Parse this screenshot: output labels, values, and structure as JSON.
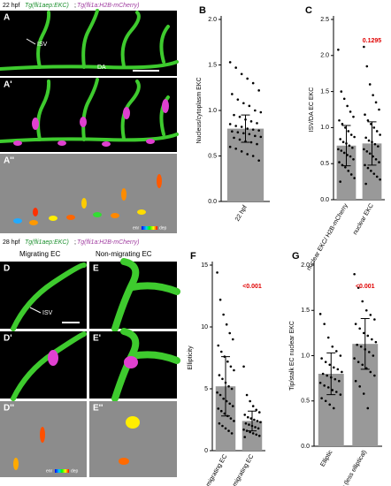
{
  "panel_texts": {
    "top_stage": "22 hpf",
    "top_line_a": "Tg(fli1aep:EKC)",
    "top_sep": ";",
    "top_line_b": "Tg(fli1a:H2B-mCherry)",
    "A": "A",
    "A1": "A'",
    "A2": "A''",
    "isv": "ISV",
    "da": "DA",
    "enr": "enr",
    "dep": "dep",
    "bottom_stage": "28 hpf",
    "bottom_line_a": "Tg(fli1aep:EKC)",
    "bottom_sep": ";",
    "bottom_line_b": "Tg(fli1a:H2B-mCherry)",
    "migrating": "Migrating EC",
    "non_migrating": "Non-migrating EC",
    "D": "D",
    "D1": "D'",
    "D2": "D''",
    "E": "E",
    "E1": "E'",
    "E2": "E''",
    "isv2": "ISV",
    "enr2": "enr",
    "dep2": "dep"
  },
  "chart_data": [
    {
      "type": "bar",
      "panel": "B",
      "y_label": "Nucleus/cytoplasm EKC",
      "color": "#999999",
      "categories": [
        "22 hpf"
      ],
      "values": [
        0.8
      ],
      "errors": [
        0.15
      ],
      "points": [
        [
          1.53,
          1.47,
          1.4,
          1.35,
          1.3,
          1.22,
          1.18,
          1.12,
          1.08,
          1.05,
          1.0,
          0.98,
          0.95,
          0.93,
          0.9,
          0.88,
          0.86,
          0.85,
          0.83,
          0.82,
          0.8,
          0.79,
          0.78,
          0.77,
          0.76,
          0.75,
          0.74,
          0.72,
          0.71,
          0.7,
          0.68,
          0.66,
          0.65,
          0.63,
          0.6,
          0.58,
          0.55,
          0.52,
          0.5,
          0.45
        ]
      ],
      "ylim": [
        0,
        2.0
      ],
      "yticks": [
        {
          "value": 0,
          "label": "0.0"
        },
        {
          "value": 0.5,
          "label": "0.5"
        },
        {
          "value": 1,
          "label": "1.0"
        },
        {
          "value": 1.5,
          "label": "1.5"
        },
        {
          "value": 2,
          "label": "2.0"
        }
      ]
    },
    {
      "type": "bar",
      "panel": "C",
      "y_label": "ISV/DA EC EKC",
      "color": "#999999",
      "annotation": "0.1295",
      "categories": [
        "nuclear EKC/ H2B-mCherry",
        "nuclear EKC"
      ],
      "values": [
        0.75,
        0.78
      ],
      "errors": [
        0.28,
        0.3
      ],
      "points": [
        [
          2.08,
          1.5,
          1.4,
          1.3,
          1.22,
          1.15,
          1.1,
          1.05,
          1.0,
          0.95,
          0.9,
          0.87,
          0.84,
          0.8,
          0.78,
          0.75,
          0.72,
          0.7,
          0.68,
          0.65,
          0.62,
          0.6,
          0.56,
          0.52,
          0.48,
          0.45,
          0.4,
          0.35,
          0.3,
          0.25
        ],
        [
          2.12,
          1.85,
          1.6,
          1.45,
          1.35,
          1.25,
          1.18,
          1.1,
          1.05,
          1.0,
          0.95,
          0.9,
          0.86,
          0.82,
          0.8,
          0.77,
          0.74,
          0.7,
          0.67,
          0.64,
          0.6,
          0.56,
          0.52,
          0.48,
          0.44,
          0.4,
          0.36,
          0.32,
          0.28,
          0.22
        ]
      ],
      "ylim": [
        0,
        2.5
      ],
      "yticks": [
        {
          "value": 0,
          "label": "0.0"
        },
        {
          "value": 0.5,
          "label": "0.5"
        },
        {
          "value": 1,
          "label": "1.0"
        },
        {
          "value": 1.5,
          "label": "1.5"
        },
        {
          "value": 2,
          "label": "2.0"
        },
        {
          "value": 2.5,
          "label": "2.5"
        }
      ]
    },
    {
      "type": "bar",
      "panel": "F",
      "y_label": "Ellipticity",
      "color": "#999999",
      "annotation": "<0.001",
      "categories": [
        "migrating EC",
        "non-migrating EC"
      ],
      "values": [
        5.2,
        2.4
      ],
      "errors": [
        2.4,
        0.8
      ],
      "points": [
        [
          14.4,
          12.2,
          11.0,
          10.2,
          9.5,
          9.0,
          8.5,
          8.0,
          7.6,
          7.2,
          6.8,
          6.5,
          6.1,
          5.8,
          5.5,
          5.2,
          5.0,
          4.7,
          4.5,
          4.2,
          4.0,
          3.8,
          3.6,
          3.4,
          3.2,
          3.0,
          2.8,
          2.6,
          2.4,
          2.2,
          2.0,
          1.8,
          1.6,
          1.4
        ],
        [
          6.8,
          4.5,
          4.0,
          3.6,
          3.3,
          3.1,
          2.9,
          2.7,
          2.6,
          2.5,
          2.4,
          2.3,
          2.2,
          2.1,
          2.0,
          1.9,
          1.8,
          1.7,
          1.6,
          1.5,
          1.4,
          1.3,
          1.2,
          1.1
        ]
      ],
      "ylim": [
        0,
        15
      ],
      "yticks": [
        0,
        5,
        10,
        15
      ]
    },
    {
      "type": "bar",
      "panel": "G",
      "y_label": "Tip/stalk EC nuclear EKC",
      "color": "#999999",
      "annotation": "<0.001",
      "categories": [
        "Elliptic",
        "Oblate (less elliptical)"
      ],
      "values": [
        0.8,
        1.13
      ],
      "errors": [
        0.23,
        0.28
      ],
      "points": [
        [
          1.46,
          1.35,
          1.2,
          1.1,
          1.05,
          1.0,
          0.97,
          0.93,
          0.9,
          0.87,
          0.85,
          0.82,
          0.8,
          0.78,
          0.76,
          0.74,
          0.72,
          0.7,
          0.67,
          0.65,
          0.62,
          0.6,
          0.57,
          0.53,
          0.5,
          0.46,
          0.42
        ],
        [
          1.9,
          1.75,
          1.6,
          1.5,
          1.45,
          1.4,
          1.35,
          1.3,
          1.25,
          1.22,
          1.18,
          1.15,
          1.12,
          1.1,
          1.07,
          1.04,
          1.0,
          0.97,
          0.93,
          0.9,
          0.86,
          0.82,
          0.78,
          0.72,
          0.66,
          0.58,
          0.42
        ]
      ],
      "ylim": [
        0,
        2.0
      ],
      "yticks": [
        {
          "value": 0,
          "label": "0.0"
        },
        {
          "value": 0.5,
          "label": "0.5"
        },
        {
          "value": 1,
          "label": "1.0"
        },
        {
          "value": 1.5,
          "label": "1.5"
        },
        {
          "value": 2,
          "label": "2.0"
        }
      ]
    }
  ]
}
